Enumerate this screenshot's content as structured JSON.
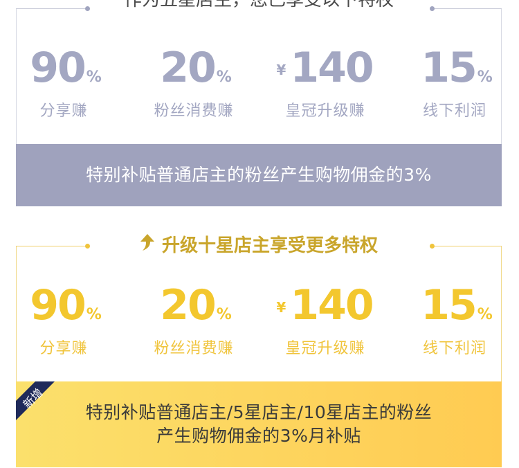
{
  "current": {
    "title": "作为五星店主，您已享受以下特权",
    "stats": [
      {
        "value": "90",
        "currency": "",
        "unit": "%",
        "label": "分享赚"
      },
      {
        "value": "20",
        "currency": "",
        "unit": "%",
        "label": "粉丝消费赚"
      },
      {
        "value": "140",
        "currency": "¥",
        "unit": "",
        "label": "皇冠升级赚"
      },
      {
        "value": "15",
        "currency": "",
        "unit": "%",
        "label": "线下利润"
      }
    ],
    "banner": "特别补贴普通店主的粉丝产生购物佣金的3%"
  },
  "upgrade": {
    "title": "升级十星店主享受更多特权",
    "stats": [
      {
        "value": "90",
        "currency": "",
        "unit": "%",
        "label": "分享赚"
      },
      {
        "value": "20",
        "currency": "",
        "unit": "%",
        "label": "粉丝消费赚"
      },
      {
        "value": "140",
        "currency": "¥",
        "unit": "",
        "label": "皇冠升级赚"
      },
      {
        "value": "15",
        "currency": "",
        "unit": "%",
        "label": "线下利润"
      }
    ],
    "badge": "新增",
    "banner_line1": "特别补贴普通店主/5星店主/10星店主的粉丝",
    "banner_line2": "产生购物佣金的3%月补贴"
  },
  "colors": {
    "muted": "#a3a7c2",
    "muted_bar": "#9fa2bd",
    "gold": "#f3c72e",
    "gold_title": "#c9a52b",
    "ribbon": "#1f2a5a"
  },
  "icons": {
    "upgrade": "up-arrow-icon"
  }
}
